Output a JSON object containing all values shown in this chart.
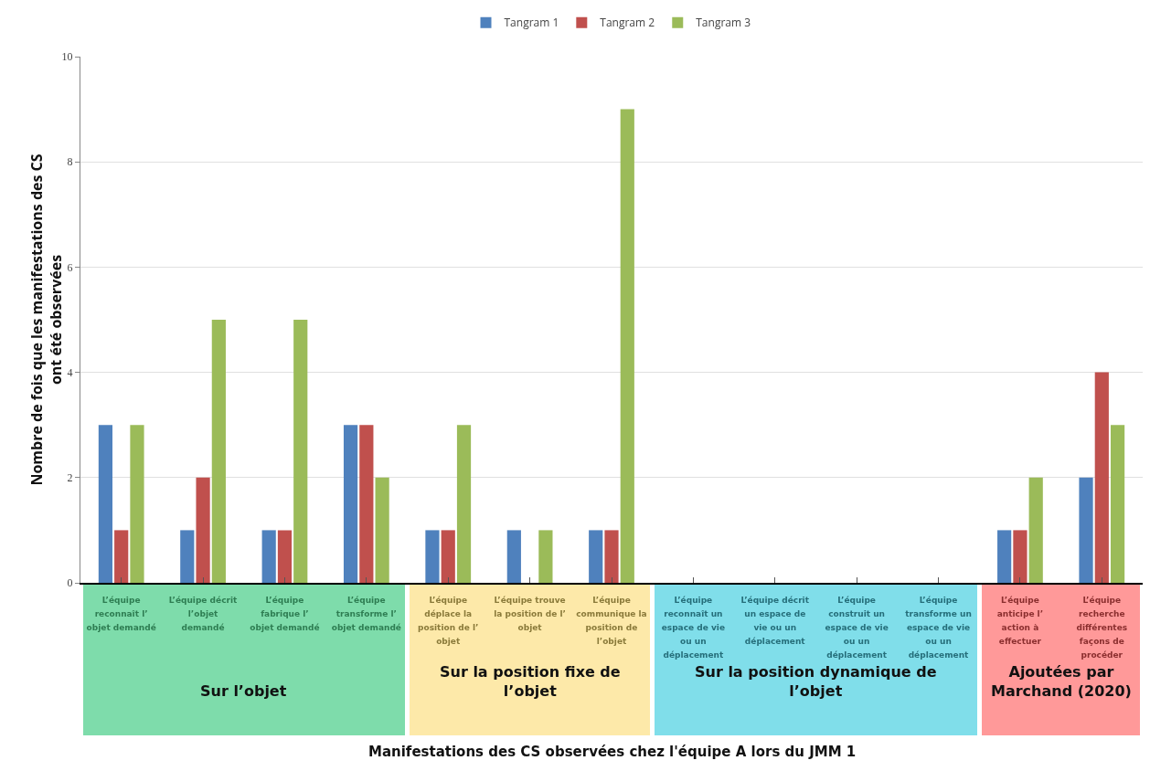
{
  "chart_data": {
    "type": "bar",
    "ylabel": "Nombre de fois que les manifestations des CS ont été observées",
    "categories": [
      "L’équipe reconnaît l’ objet demandé",
      "L’équipe décrit l’objet demandé",
      "L’équipe fabrique l’ objet demandé",
      "L’équipe transforme l’ objet demandé",
      "L’équipe déplace la position de l’ objet",
      "L’équipe trouve la position de l’ objet",
      "L’équipe communique la position de l’objet",
      "L’équipe reconnaît un espace de vie ou un déplacement",
      "L’équipe décrit un espace de vie ou un déplacement",
      "L’équipe construit un espace de vie ou un déplacement",
      "L’équipe transforme un espace de vie ou un déplacement",
      "L’équipe anticipe l’ action à effectuer",
      "L’équipe recherche différentes façons de procéder"
    ],
    "series": [
      {
        "name": "Tangram 1",
        "color": "#4f81bd",
        "values": [
          3,
          1,
          1,
          3,
          1,
          1,
          1,
          0,
          0,
          0,
          0,
          1,
          2
        ]
      },
      {
        "name": "Tangram 2",
        "color": "#c0504d",
        "values": [
          1,
          2,
          1,
          3,
          1,
          0,
          1,
          0,
          0,
          0,
          0,
          1,
          4
        ]
      },
      {
        "name": "Tangram 3",
        "color": "#9bbb59",
        "values": [
          3,
          5,
          5,
          2,
          3,
          1,
          9,
          0,
          0,
          0,
          0,
          2,
          3
        ]
      }
    ],
    "annotations": [
      "Sur l’objet",
      "Sur la position fixe de l’objet",
      "Sur la position dynamique de l’objet",
      "Ajoutées par Marchand (2020)",
      "Manifestations des CS observées chez l'équipe A lors du JMM 1"
    ],
    "ylim": [
      0,
      10
    ],
    "yticks": [
      0,
      2,
      4,
      6,
      8,
      10
    ],
    "grid": "y",
    "legend": "top"
  }
}
